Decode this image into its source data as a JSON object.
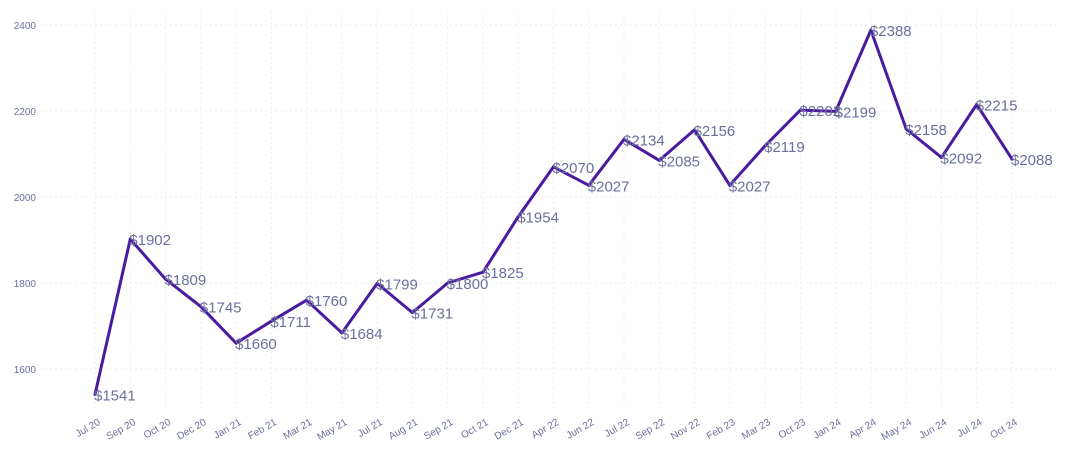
{
  "chart_data": {
    "type": "line",
    "title": "",
    "xlabel": "",
    "ylabel": "",
    "categories": [
      "Jul 20",
      "Sep 20",
      "Oct 20",
      "Dec 20",
      "Jan 21",
      "Feb 21",
      "Mar 21",
      "May 21",
      "Jul 21",
      "Aug 21",
      "Sep 21",
      "Oct 21",
      "Dec 21",
      "Apr 22",
      "Jun 22",
      "Jul 22",
      "Sep 22",
      "Nov 22",
      "Feb 23",
      "Mar 23",
      "Oct 23",
      "Jan 24",
      "Apr 24",
      "May 24",
      "Jun 24",
      "Jul 24",
      "Oct 24"
    ],
    "series": [
      {
        "values": [
          1541,
          1902,
          1809,
          1745,
          1660,
          1711,
          1760,
          1684,
          1799,
          1731,
          1800,
          1825,
          1954,
          2070,
          2027,
          2134,
          2085,
          2156,
          2027,
          2119,
          2202,
          2199,
          2388,
          2158,
          2092,
          2215,
          2088
        ],
        "labels": [
          "$1541",
          "$1902",
          "$1809",
          "$1745",
          "$1660",
          "$1711",
          "$1760",
          "$1684",
          "$1799",
          "$1731",
          "$1800",
          "$1825",
          "$1954",
          "$2070",
          "$2027",
          "$2134",
          "$2085",
          "$2156",
          "$2027",
          "$2119",
          "$2202",
          "$2199",
          "$2388",
          "$2158",
          "$2092",
          "$2215",
          "$2088"
        ],
        "color": "#4a1aa0"
      }
    ],
    "ylim": [
      1500,
      2430
    ],
    "y_ticks": [
      "1600",
      "1800",
      "2000",
      "2200",
      "2400"
    ],
    "y_tick_values": [
      1600,
      1800,
      2000,
      2200,
      2400
    ],
    "grid": true,
    "label_color": "#6b6f9c"
  }
}
